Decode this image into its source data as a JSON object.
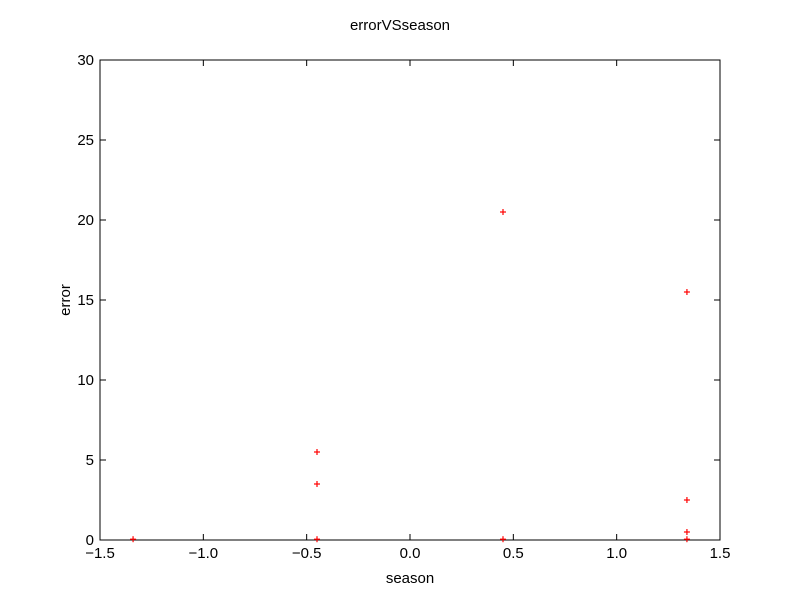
{
  "chart_data": {
    "type": "scatter",
    "title": "errorVSseason",
    "xlabel": "season",
    "ylabel": "error",
    "xlim": [
      -1.5,
      1.5
    ],
    "ylim": [
      0,
      30
    ],
    "xticks": [
      "−1.5",
      "−1.0",
      "−0.5",
      "0.0",
      "0.5",
      "1.0",
      "1.5"
    ],
    "xtick_values": [
      -1.5,
      -1.0,
      -0.5,
      0.0,
      0.5,
      1.0,
      1.5
    ],
    "yticks": [
      "0",
      "5",
      "10",
      "15",
      "20",
      "25",
      "30"
    ],
    "ytick_values": [
      0,
      5,
      10,
      15,
      20,
      25,
      30
    ],
    "grid": false,
    "marker": "plus",
    "color": "#ff0000",
    "points": [
      {
        "x": -1.34,
        "y": 0.05
      },
      {
        "x": -0.45,
        "y": 5.5
      },
      {
        "x": -0.45,
        "y": 3.5
      },
      {
        "x": -0.45,
        "y": 0.05
      },
      {
        "x": 0.45,
        "y": 20.5
      },
      {
        "x": 0.45,
        "y": 0.05
      },
      {
        "x": 1.34,
        "y": 15.5
      },
      {
        "x": 1.34,
        "y": 2.5
      },
      {
        "x": 1.34,
        "y": 0.5
      },
      {
        "x": 1.34,
        "y": 0.05
      }
    ]
  }
}
